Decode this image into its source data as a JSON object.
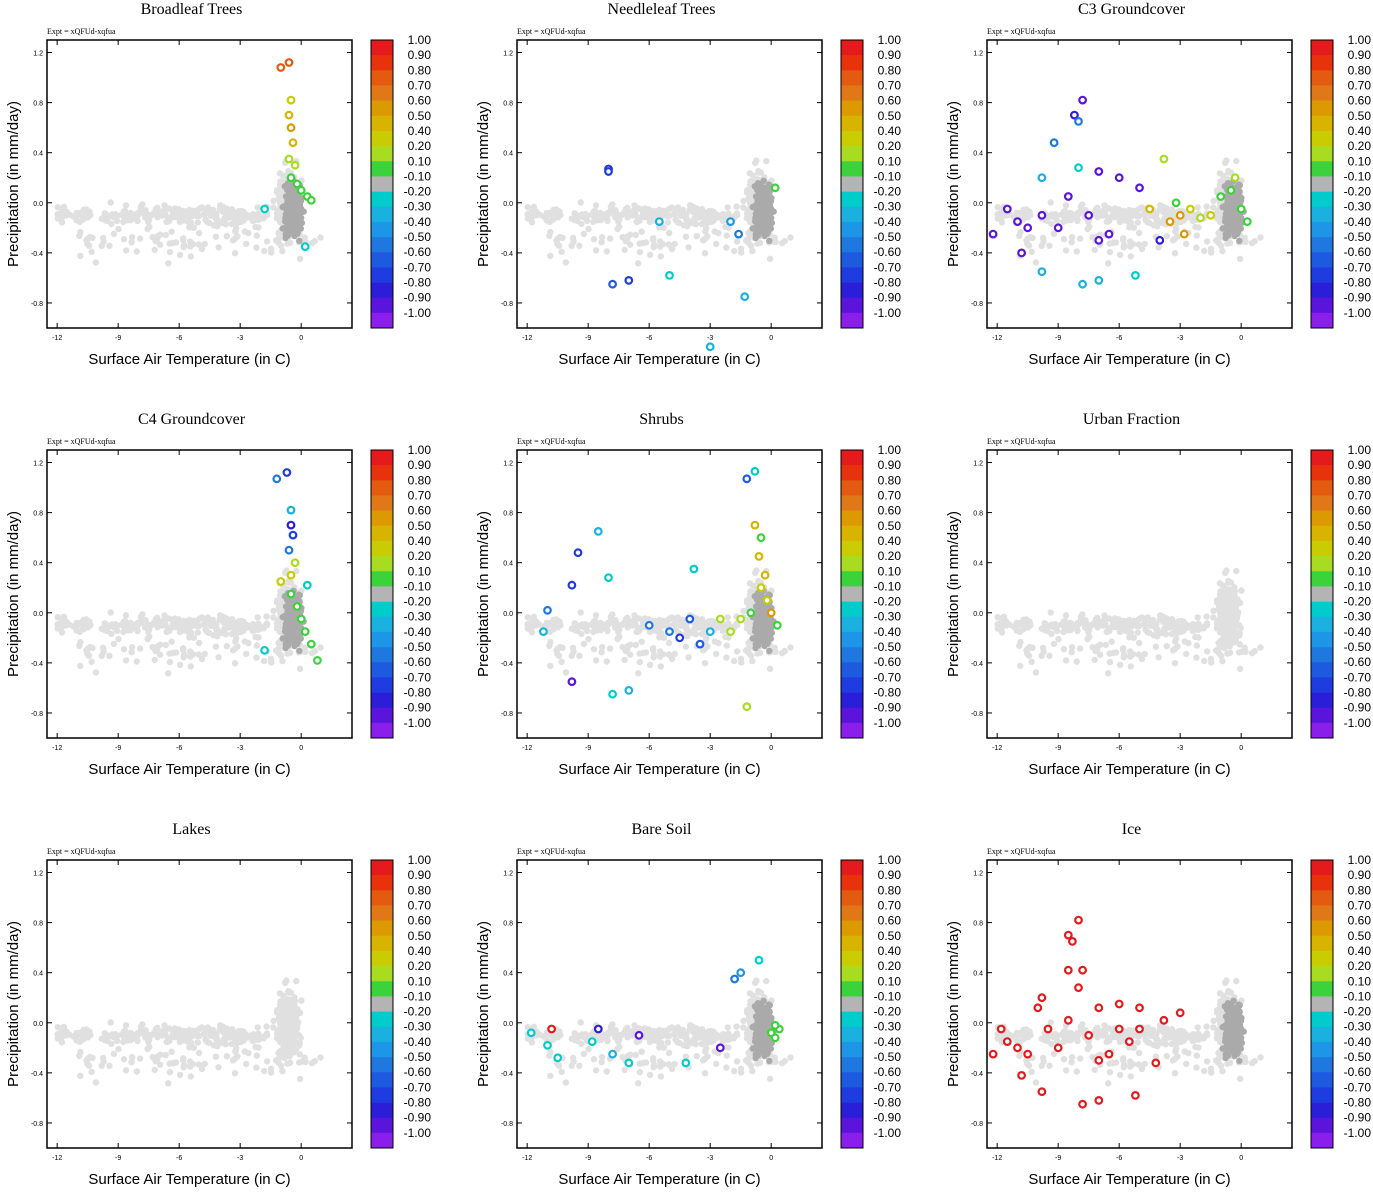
{
  "expt_label": "Expt = xQFUd-xqfua",
  "xlabel": "Surface Air Temperature (in C)",
  "ylabel": "Precipitation (in mm/day)",
  "x_ticks": [
    "-12",
    "-9",
    "-6",
    "-3",
    "0"
  ],
  "y_ticks": [
    "1.2",
    "0.8",
    "0.4",
    "0.0",
    "-0.4",
    "-0.8"
  ],
  "colorbar": {
    "labels": [
      "1.00",
      "0.90",
      "0.80",
      "0.70",
      "0.60",
      "0.50",
      "0.40",
      "0.20",
      "0.10",
      "-0.10",
      "-0.20",
      "-0.30",
      "-0.40",
      "-0.50",
      "-0.60",
      "-0.70",
      "-0.80",
      "-0.90",
      "-1.00"
    ],
    "colors": [
      "#e41a1c",
      "#e8320c",
      "#e45a10",
      "#e07818",
      "#dc9a00",
      "#d8b400",
      "#c8cc00",
      "#a8dc20",
      "#3cd23c",
      "#b4b4b4",
      "#00cccc",
      "#1ab0e0",
      "#1e96e8",
      "#1e78e0",
      "#1e5ae0",
      "#1e3ce0",
      "#2a1ed8",
      "#5a14dc",
      "#8a1eea"
    ]
  },
  "chart_data": [
    {
      "type": "scatter",
      "title": "Broadleaf Trees",
      "xlabel": "Surface Air Temperature (in C)",
      "ylabel": "Precipitation (in mm/day)",
      "xlim": [
        -12.5,
        2.5
      ],
      "ylim": [
        -1.0,
        1.3
      ],
      "colorbar_range": [
        -1.0,
        1.0
      ],
      "highlighted_points": [
        {
          "x": -1.0,
          "y": 1.08,
          "v": 0.75
        },
        {
          "x": -0.6,
          "y": 1.12,
          "v": 0.8
        },
        {
          "x": -0.5,
          "y": 0.82,
          "v": 0.35
        },
        {
          "x": -0.6,
          "y": 0.7,
          "v": 0.5
        },
        {
          "x": -0.5,
          "y": 0.6,
          "v": 0.55
        },
        {
          "x": -0.4,
          "y": 0.48,
          "v": 0.45
        },
        {
          "x": -0.6,
          "y": 0.35,
          "v": 0.3
        },
        {
          "x": -0.3,
          "y": 0.3,
          "v": 0.2
        },
        {
          "x": -0.5,
          "y": 0.2,
          "v": 0.15
        },
        {
          "x": -0.2,
          "y": 0.15,
          "v": 0.15
        },
        {
          "x": 0.0,
          "y": 0.1,
          "v": 0.12
        },
        {
          "x": 0.3,
          "y": 0.05,
          "v": 0.12
        },
        {
          "x": 0.5,
          "y": 0.02,
          "v": 0.15
        },
        {
          "x": -1.8,
          "y": -0.05,
          "v": -0.25
        },
        {
          "x": 0.2,
          "y": -0.35,
          "v": -0.25
        }
      ]
    },
    {
      "type": "scatter",
      "title": "Needleleaf Trees",
      "xlabel": "Surface Air Temperature (in C)",
      "ylabel": "Precipitation (in mm/day)",
      "xlim": [
        -12.5,
        2.5
      ],
      "ylim": [
        -1.0,
        1.3
      ],
      "colorbar_range": [
        -1.0,
        1.0
      ],
      "highlighted_points": [
        {
          "x": -8.0,
          "y": 0.27,
          "v": -0.75
        },
        {
          "x": -8.0,
          "y": 0.25,
          "v": -0.7
        },
        {
          "x": -7.8,
          "y": -0.65,
          "v": -0.6
        },
        {
          "x": -7.0,
          "y": -0.62,
          "v": -0.7
        },
        {
          "x": -5.0,
          "y": -0.58,
          "v": -0.25
        },
        {
          "x": -5.5,
          "y": -0.15,
          "v": -0.3
        },
        {
          "x": -1.3,
          "y": -0.75,
          "v": -0.3
        },
        {
          "x": -1.6,
          "y": -0.25,
          "v": -0.5
        },
        {
          "x": 0.2,
          "y": 0.12,
          "v": 0.15
        },
        {
          "x": -2.0,
          "y": -0.15,
          "v": -0.4
        },
        {
          "x": -3.0,
          "y": -1.15,
          "v": -0.3
        }
      ]
    },
    {
      "type": "scatter",
      "title": "C3 Groundcover",
      "xlabel": "Surface Air Temperature (in C)",
      "ylabel": "Precipitation (in mm/day)",
      "xlim": [
        -12.5,
        2.5
      ],
      "ylim": [
        -1.0,
        1.3
      ],
      "colorbar_range": [
        -1.0,
        1.0
      ],
      "highlighted_points": [
        {
          "x": -7.8,
          "y": 0.82,
          "v": -0.9
        },
        {
          "x": -8.2,
          "y": 0.7,
          "v": -0.85
        },
        {
          "x": -8.0,
          "y": 0.65,
          "v": -0.5
        },
        {
          "x": -9.2,
          "y": 0.48,
          "v": -0.5
        },
        {
          "x": -8.0,
          "y": 0.28,
          "v": -0.25
        },
        {
          "x": -9.8,
          "y": 0.2,
          "v": -0.3
        },
        {
          "x": -7.0,
          "y": 0.25,
          "v": -0.9
        },
        {
          "x": -6.0,
          "y": 0.2,
          "v": -0.9
        },
        {
          "x": -5.0,
          "y": 0.12,
          "v": -0.9
        },
        {
          "x": -11.5,
          "y": -0.05,
          "v": -0.95
        },
        {
          "x": -11.0,
          "y": -0.15,
          "v": -0.9
        },
        {
          "x": -10.5,
          "y": -0.2,
          "v": -0.9
        },
        {
          "x": -12.2,
          "y": -0.25,
          "v": -0.9
        },
        {
          "x": -10.8,
          "y": -0.4,
          "v": -0.9
        },
        {
          "x": -9.8,
          "y": -0.1,
          "v": -0.9
        },
        {
          "x": -9.0,
          "y": -0.2,
          "v": -0.9
        },
        {
          "x": -8.5,
          "y": 0.05,
          "v": -0.9
        },
        {
          "x": -7.5,
          "y": -0.1,
          "v": -0.9
        },
        {
          "x": -7.0,
          "y": -0.3,
          "v": -0.9
        },
        {
          "x": -6.5,
          "y": -0.25,
          "v": -0.9
        },
        {
          "x": -9.8,
          "y": -0.55,
          "v": -0.3
        },
        {
          "x": -7.8,
          "y": -0.65,
          "v": -0.3
        },
        {
          "x": -7.0,
          "y": -0.62,
          "v": -0.3
        },
        {
          "x": -5.2,
          "y": -0.58,
          "v": -0.25
        },
        {
          "x": -4.0,
          "y": -0.3,
          "v": -0.8
        },
        {
          "x": -3.8,
          "y": 0.35,
          "v": 0.2
        },
        {
          "x": -4.5,
          "y": -0.05,
          "v": 0.45
        },
        {
          "x": -3.5,
          "y": -0.15,
          "v": 0.55
        },
        {
          "x": -3.0,
          "y": -0.1,
          "v": 0.6
        },
        {
          "x": -2.5,
          "y": -0.05,
          "v": 0.4
        },
        {
          "x": -2.0,
          "y": -0.12,
          "v": 0.3
        },
        {
          "x": -1.5,
          "y": -0.1,
          "v": 0.35
        },
        {
          "x": -2.8,
          "y": -0.25,
          "v": 0.55
        },
        {
          "x": -3.2,
          "y": 0.0,
          "v": 0.15
        },
        {
          "x": -1.0,
          "y": 0.05,
          "v": 0.15
        },
        {
          "x": -0.5,
          "y": 0.1,
          "v": 0.15
        },
        {
          "x": 0.0,
          "y": -0.05,
          "v": 0.15
        },
        {
          "x": 0.3,
          "y": -0.15,
          "v": 0.12
        },
        {
          "x": -0.3,
          "y": 0.2,
          "v": 0.2
        }
      ]
    },
    {
      "type": "scatter",
      "title": "C4 Groundcover",
      "xlabel": "Surface Air Temperature (in C)",
      "ylabel": "Precipitation (in mm/day)",
      "xlim": [
        -12.5,
        2.5
      ],
      "ylim": [
        -1.0,
        1.3
      ],
      "colorbar_range": [
        -1.0,
        1.0
      ],
      "highlighted_points": [
        {
          "x": -1.2,
          "y": 1.07,
          "v": -0.5
        },
        {
          "x": -0.7,
          "y": 1.12,
          "v": -0.75
        },
        {
          "x": -0.5,
          "y": 0.82,
          "v": -0.3
        },
        {
          "x": -0.5,
          "y": 0.7,
          "v": -0.85
        },
        {
          "x": -0.4,
          "y": 0.62,
          "v": -0.7
        },
        {
          "x": -0.6,
          "y": 0.5,
          "v": -0.5
        },
        {
          "x": -0.3,
          "y": 0.4,
          "v": 0.3
        },
        {
          "x": -0.5,
          "y": 0.3,
          "v": 0.35
        },
        {
          "x": -1.0,
          "y": 0.25,
          "v": 0.4
        },
        {
          "x": 0.3,
          "y": 0.22,
          "v": -0.25
        },
        {
          "x": -0.5,
          "y": 0.15,
          "v": 0.15
        },
        {
          "x": -0.2,
          "y": 0.05,
          "v": 0.15
        },
        {
          "x": 0.0,
          "y": -0.05,
          "v": 0.15
        },
        {
          "x": 0.2,
          "y": -0.15,
          "v": 0.12
        },
        {
          "x": 0.5,
          "y": -0.25,
          "v": 0.15
        },
        {
          "x": 0.8,
          "y": -0.38,
          "v": 0.15
        },
        {
          "x": -1.8,
          "y": -0.3,
          "v": -0.25
        }
      ]
    },
    {
      "type": "scatter",
      "title": "Shrubs",
      "xlabel": "Surface Air Temperature (in C)",
      "ylabel": "Precipitation (in mm/day)",
      "xlim": [
        -12.5,
        2.5
      ],
      "ylim": [
        -1.0,
        1.3
      ],
      "colorbar_range": [
        -1.0,
        1.0
      ],
      "highlighted_points": [
        {
          "x": -1.2,
          "y": 1.07,
          "v": -0.55
        },
        {
          "x": -0.8,
          "y": 1.13,
          "v": -0.25
        },
        {
          "x": -9.5,
          "y": 0.48,
          "v": -0.75
        },
        {
          "x": -8.5,
          "y": 0.65,
          "v": -0.3
        },
        {
          "x": -9.8,
          "y": 0.22,
          "v": -0.65
        },
        {
          "x": -8.0,
          "y": 0.28,
          "v": -0.25
        },
        {
          "x": -11.0,
          "y": 0.02,
          "v": -0.5
        },
        {
          "x": -11.2,
          "y": -0.15,
          "v": -0.3
        },
        {
          "x": -9.8,
          "y": -0.55,
          "v": -0.9
        },
        {
          "x": -7.8,
          "y": -0.65,
          "v": -0.25
        },
        {
          "x": -7.0,
          "y": -0.62,
          "v": -0.3
        },
        {
          "x": -3.8,
          "y": 0.35,
          "v": -0.25
        },
        {
          "x": -5.0,
          "y": -0.15,
          "v": -0.5
        },
        {
          "x": -4.5,
          "y": -0.2,
          "v": -0.7
        },
        {
          "x": -4.0,
          "y": -0.05,
          "v": -0.55
        },
        {
          "x": -3.5,
          "y": -0.25,
          "v": -0.6
        },
        {
          "x": -3.0,
          "y": -0.15,
          "v": -0.3
        },
        {
          "x": -2.5,
          "y": -0.05,
          "v": 0.2
        },
        {
          "x": -2.0,
          "y": -0.15,
          "v": 0.25
        },
        {
          "x": -1.5,
          "y": -0.05,
          "v": 0.3
        },
        {
          "x": -1.0,
          "y": 0.0,
          "v": 0.15
        },
        {
          "x": -0.8,
          "y": 0.7,
          "v": 0.45
        },
        {
          "x": -0.5,
          "y": 0.6,
          "v": 0.15
        },
        {
          "x": -0.6,
          "y": 0.45,
          "v": 0.45
        },
        {
          "x": -0.3,
          "y": 0.3,
          "v": 0.5
        },
        {
          "x": -0.5,
          "y": 0.2,
          "v": 0.35
        },
        {
          "x": -0.2,
          "y": 0.1,
          "v": 0.4
        },
        {
          "x": 0.0,
          "y": 0.0,
          "v": 0.55
        },
        {
          "x": 0.3,
          "y": -0.1,
          "v": 0.15
        },
        {
          "x": -1.2,
          "y": -0.75,
          "v": 0.3
        },
        {
          "x": -6.0,
          "y": -0.1,
          "v": -0.5
        }
      ]
    },
    {
      "type": "scatter",
      "title": "Urban Fraction",
      "xlabel": "Surface Air Temperature (in C)",
      "ylabel": "Precipitation (in mm/day)",
      "xlim": [
        -12.5,
        2.5
      ],
      "ylim": [
        -1.0,
        1.3
      ],
      "colorbar_range": [
        -1.0,
        1.0
      ],
      "highlighted_points": []
    },
    {
      "type": "scatter",
      "title": "Lakes",
      "xlabel": "Surface Air Temperature (in C)",
      "ylabel": "Precipitation (in mm/day)",
      "xlim": [
        -12.5,
        2.5
      ],
      "ylim": [
        -1.0,
        1.3
      ],
      "colorbar_range": [
        -1.0,
        1.0
      ],
      "highlighted_points": []
    },
    {
      "type": "scatter",
      "title": "Bare Soil",
      "xlabel": "Surface Air Temperature (in C)",
      "ylabel": "Precipitation (in mm/day)",
      "xlim": [
        -12.5,
        2.5
      ],
      "ylim": [
        -1.0,
        1.3
      ],
      "colorbar_range": [
        -1.0,
        1.0
      ],
      "highlighted_points": [
        {
          "x": -10.8,
          "y": -0.05,
          "v": 1.0
        },
        {
          "x": -11.8,
          "y": -0.08,
          "v": -0.25
        },
        {
          "x": -11.0,
          "y": -0.18,
          "v": -0.25
        },
        {
          "x": -10.5,
          "y": -0.28,
          "v": -0.25
        },
        {
          "x": -8.5,
          "y": -0.05,
          "v": -0.85
        },
        {
          "x": -8.8,
          "y": -0.15,
          "v": -0.25
        },
        {
          "x": -7.8,
          "y": -0.25,
          "v": -0.3
        },
        {
          "x": -7.0,
          "y": -0.32,
          "v": -0.25
        },
        {
          "x": -6.5,
          "y": -0.1,
          "v": -0.9
        },
        {
          "x": -4.2,
          "y": -0.32,
          "v": -0.25
        },
        {
          "x": -1.8,
          "y": 0.35,
          "v": -0.5
        },
        {
          "x": -1.5,
          "y": 0.4,
          "v": -0.4
        },
        {
          "x": -0.6,
          "y": 0.5,
          "v": -0.25
        },
        {
          "x": -2.5,
          "y": -0.2,
          "v": -0.9
        },
        {
          "x": 0.0,
          "y": -0.08,
          "v": 0.15
        },
        {
          "x": 0.2,
          "y": -0.12,
          "v": 0.15
        },
        {
          "x": 0.4,
          "y": -0.05,
          "v": 0.12
        },
        {
          "x": 0.2,
          "y": -0.02,
          "v": 0.15
        }
      ]
    },
    {
      "type": "scatter",
      "title": "Ice",
      "xlabel": "Surface Air Temperature (in C)",
      "ylabel": "Precipitation (in mm/day)",
      "xlim": [
        -12.5,
        2.5
      ],
      "ylim": [
        -1.0,
        1.3
      ],
      "colorbar_range": [
        -1.0,
        1.0
      ],
      "highlighted_points": [
        {
          "x": -8.0,
          "y": 0.82,
          "v": 1.0
        },
        {
          "x": -8.5,
          "y": 0.7,
          "v": 1.0
        },
        {
          "x": -8.3,
          "y": 0.65,
          "v": 1.0
        },
        {
          "x": -8.5,
          "y": 0.42,
          "v": 1.0
        },
        {
          "x": -7.8,
          "y": 0.42,
          "v": 1.0
        },
        {
          "x": -9.8,
          "y": 0.2,
          "v": 1.0
        },
        {
          "x": -8.0,
          "y": 0.28,
          "v": 1.0
        },
        {
          "x": -10.0,
          "y": 0.12,
          "v": 1.0
        },
        {
          "x": -7.0,
          "y": 0.12,
          "v": 1.0
        },
        {
          "x": -6.0,
          "y": 0.15,
          "v": 1.0
        },
        {
          "x": -5.0,
          "y": 0.12,
          "v": 1.0
        },
        {
          "x": -11.8,
          "y": -0.05,
          "v": 1.0
        },
        {
          "x": -11.5,
          "y": -0.15,
          "v": 1.0
        },
        {
          "x": -11.0,
          "y": -0.2,
          "v": 1.0
        },
        {
          "x": -10.5,
          "y": -0.25,
          "v": 1.0
        },
        {
          "x": -12.2,
          "y": -0.25,
          "v": 1.0
        },
        {
          "x": -10.8,
          "y": -0.42,
          "v": 1.0
        },
        {
          "x": -9.5,
          "y": -0.05,
          "v": 1.0
        },
        {
          "x": -9.0,
          "y": -0.2,
          "v": 1.0
        },
        {
          "x": -8.5,
          "y": 0.02,
          "v": 1.0
        },
        {
          "x": -7.5,
          "y": -0.1,
          "v": 1.0
        },
        {
          "x": -7.0,
          "y": -0.3,
          "v": 1.0
        },
        {
          "x": -6.5,
          "y": -0.25,
          "v": 1.0
        },
        {
          "x": -6.0,
          "y": -0.05,
          "v": 1.0
        },
        {
          "x": -5.5,
          "y": -0.15,
          "v": 1.0
        },
        {
          "x": -5.0,
          "y": -0.05,
          "v": 1.0
        },
        {
          "x": -9.8,
          "y": -0.55,
          "v": 1.0
        },
        {
          "x": -7.8,
          "y": -0.65,
          "v": 1.0
        },
        {
          "x": -7.0,
          "y": -0.62,
          "v": 1.0
        },
        {
          "x": -5.2,
          "y": -0.58,
          "v": 1.0
        },
        {
          "x": -4.2,
          "y": -0.32,
          "v": 1.0
        },
        {
          "x": -3.8,
          "y": 0.02,
          "v": 1.0
        },
        {
          "x": -3.0,
          "y": 0.08,
          "v": 1.0
        }
      ]
    }
  ]
}
